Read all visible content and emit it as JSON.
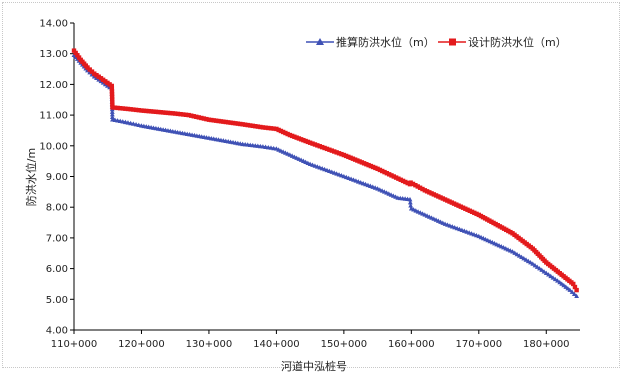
{
  "chart_data": {
    "type": "line",
    "title": "",
    "xlabel": "河道中泓桩号",
    "ylabel": "防洪水位/m",
    "xlim": [
      110,
      185
    ],
    "ylim": [
      4.0,
      14.0
    ],
    "x_ticks": [
      {
        "v": 110,
        "label": "110+000"
      },
      {
        "v": 120,
        "label": "120+000"
      },
      {
        "v": 130,
        "label": "130+000"
      },
      {
        "v": 140,
        "label": "140+000"
      },
      {
        "v": 150,
        "label": "150+000"
      },
      {
        "v": 160,
        "label": "160+000"
      },
      {
        "v": 170,
        "label": "170+000"
      },
      {
        "v": 180,
        "label": "180+000"
      }
    ],
    "y_ticks": [
      "4.00",
      "5.00",
      "6.00",
      "7.00",
      "8.00",
      "9.00",
      "10.00",
      "11.00",
      "12.00",
      "13.00",
      "14.00"
    ],
    "legend_position": "top-right",
    "grid": false,
    "series": [
      {
        "name": "推算防洪水位（m）",
        "color": "#3f51b5",
        "marker": "triangle",
        "x": [
          110.0,
          111.0,
          112.0,
          113.0,
          114.0,
          115.6,
          115.7,
          118.0,
          120.0,
          125.0,
          130.0,
          135.0,
          138.0,
          140.0,
          142.0,
          145.0,
          150.0,
          155.0,
          158.0,
          159.8,
          159.9,
          160.0,
          162.0,
          165.0,
          170.0,
          175.0,
          178.0,
          180.0,
          182.0,
          183.5,
          184.5
        ],
        "y": [
          12.95,
          12.7,
          12.45,
          12.25,
          12.1,
          11.85,
          10.85,
          10.75,
          10.65,
          10.45,
          10.25,
          10.05,
          9.97,
          9.9,
          9.7,
          9.4,
          9.0,
          8.6,
          8.3,
          8.25,
          8.05,
          7.95,
          7.75,
          7.45,
          7.05,
          6.55,
          6.15,
          5.85,
          5.55,
          5.3,
          5.1
        ]
      },
      {
        "name": "设计防洪水位（m）",
        "color": "#e31a1c",
        "marker": "square",
        "x": [
          110.0,
          111.0,
          112.0,
          113.0,
          114.0,
          115.6,
          115.7,
          118.0,
          120.0,
          125.0,
          127.0,
          130.0,
          135.0,
          138.0,
          140.0,
          142.0,
          145.0,
          150.0,
          155.0,
          159.8,
          159.9,
          162.0,
          165.0,
          170.0,
          175.0,
          178.0,
          180.0,
          182.0,
          184.0,
          184.5
        ],
        "y": [
          13.1,
          12.8,
          12.55,
          12.35,
          12.2,
          11.95,
          11.25,
          11.2,
          11.15,
          11.05,
          11.0,
          10.85,
          10.7,
          10.6,
          10.55,
          10.35,
          10.1,
          9.7,
          9.25,
          8.75,
          8.8,
          8.55,
          8.25,
          7.75,
          7.15,
          6.65,
          6.2,
          5.85,
          5.5,
          5.3
        ]
      }
    ]
  }
}
